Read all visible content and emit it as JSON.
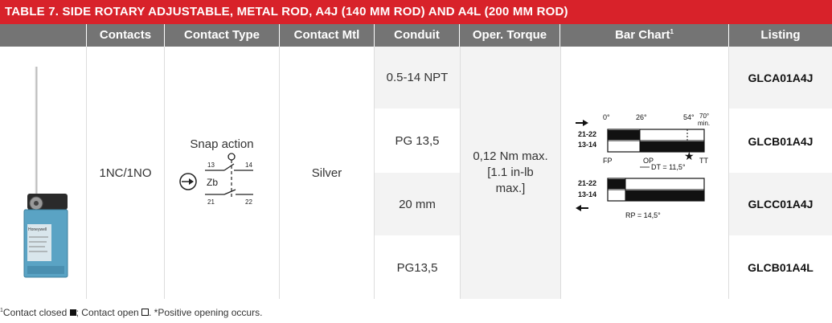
{
  "title": "TABLE 7. SIDE ROTARY ADJUSTABLE, METAL ROD, A4J (140 MM ROD) AND A4L (200 MM ROD)",
  "headers": {
    "contacts": "Contacts",
    "contact_type": "Contact Type",
    "contact_mtl": "Contact Mtl",
    "conduit": "Conduit",
    "oper_torque": "Oper. Torque",
    "bar_chart": "Bar Chart",
    "bar_chart_sup": "1",
    "listing": "Listing"
  },
  "row": {
    "contacts": "1NC/1NO",
    "contact_type": "Snap action",
    "contact_mtl": "Silver",
    "oper_torque_l1": "0,12 Nm max.",
    "oper_torque_l2": "[1.1 in-lb",
    "oper_torque_l3": "max.]"
  },
  "conduits": [
    "0.5-14 NPT",
    "PG 13,5",
    "20 mm",
    "PG13,5"
  ],
  "listings": [
    "GLCA01A4J",
    "GLCB01A4J",
    "GLCC01A4J",
    "GLCB01A4L"
  ],
  "symbol": {
    "t13": "13",
    "t14": "14",
    "t21": "21",
    "t22": "22",
    "zb": "Zb"
  },
  "bar_chart_labels": {
    "deg0": "0°",
    "deg26": "26°",
    "deg54": "54°",
    "deg70": "70°",
    "min": "min.",
    "c2122": "21-22",
    "c1314": "13-14",
    "fp": "FP",
    "op": "OP",
    "tt": "TT",
    "dt": "DT = 11,5°",
    "rp": "RP = 14,5°",
    "star": "★"
  },
  "device_label": "Honeywell",
  "footnote": {
    "sup": "1",
    "text1": "Contact closed ",
    "text2": "; Contact open ",
    "text3": ". *Positive opening occurs."
  }
}
